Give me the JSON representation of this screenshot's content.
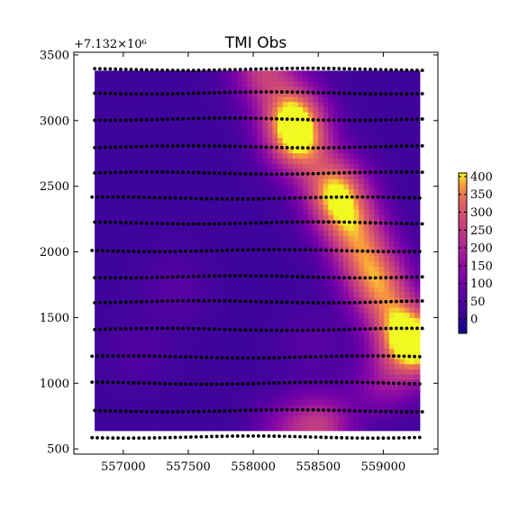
{
  "chart_data": {
    "type": "heatmap",
    "title": "TMI Obs",
    "y_offset_text": "+7.132×10⁶",
    "x_ticks": [
      557000,
      557500,
      558000,
      558500,
      559000
    ],
    "y_ticks": [
      500,
      1000,
      1500,
      2000,
      2500,
      3000,
      3500
    ],
    "xlim": [
      556620,
      559420
    ],
    "ylim": [
      460,
      3520
    ],
    "data_extent": {
      "x": [
        556780,
        559280
      ],
      "y": [
        640,
        3380
      ]
    },
    "colorbar": {
      "colormap": "plasma",
      "range": [
        -40,
        410
      ],
      "ticks": [
        0,
        50,
        100,
        150,
        200,
        250,
        300,
        350,
        400
      ]
    },
    "anomalies": [
      {
        "x": 558080,
        "y": 3390,
        "amplitude": 220
      },
      {
        "x": 558300,
        "y": 3050,
        "amplitude": 330
      },
      {
        "x": 558350,
        "y": 2820,
        "amplitude": 300
      },
      {
        "x": 558620,
        "y": 2500,
        "amplitude": 280
      },
      {
        "x": 558700,
        "y": 2300,
        "amplitude": 230
      },
      {
        "x": 558820,
        "y": 2070,
        "amplitude": 210
      },
      {
        "x": 558920,
        "y": 1830,
        "amplitude": 220
      },
      {
        "x": 559020,
        "y": 1640,
        "amplitude": 170
      },
      {
        "x": 559150,
        "y": 1400,
        "amplitude": 250
      },
      {
        "x": 559270,
        "y": 1270,
        "amplitude": 330
      },
      {
        "x": 559000,
        "y": 1000,
        "amplitude": 120
      },
      {
        "x": 558530,
        "y": 680,
        "amplitude": 200
      },
      {
        "x": 558250,
        "y": 640,
        "amplitude": 110
      },
      {
        "x": 557400,
        "y": 1720,
        "amplitude": 40
      },
      {
        "x": 557120,
        "y": 1250,
        "amplitude": 30
      },
      {
        "x": 558450,
        "y": 1300,
        "amplitude": 40
      }
    ],
    "background_level": 20,
    "survey_lines": [
      {
        "y": 3390,
        "x_start": 556780,
        "x_end": 559300,
        "spacing": 40
      },
      {
        "y": 3210,
        "x_start": 556780,
        "x_end": 559300,
        "spacing": 40
      },
      {
        "y": 3010,
        "x_start": 556780,
        "x_end": 559300,
        "spacing": 40
      },
      {
        "y": 2800,
        "x_start": 556780,
        "x_end": 559300,
        "spacing": 40
      },
      {
        "y": 2600,
        "x_start": 556780,
        "x_end": 559300,
        "spacing": 40
      },
      {
        "y": 2410,
        "x_start": 556760,
        "x_end": 559300,
        "spacing": 40
      },
      {
        "y": 2220,
        "x_start": 556780,
        "x_end": 559300,
        "spacing": 40
      },
      {
        "y": 2010,
        "x_start": 556760,
        "x_end": 559300,
        "spacing": 40
      },
      {
        "y": 1810,
        "x_start": 556780,
        "x_end": 559300,
        "spacing": 40
      },
      {
        "y": 1620,
        "x_start": 556780,
        "x_end": 559300,
        "spacing": 40
      },
      {
        "y": 1410,
        "x_start": 556780,
        "x_end": 559300,
        "spacing": 40
      },
      {
        "y": 1200,
        "x_start": 556760,
        "x_end": 559300,
        "spacing": 40
      },
      {
        "y": 1000,
        "x_start": 556760,
        "x_end": 559300,
        "spacing": 40
      },
      {
        "y": 790,
        "x_start": 556780,
        "x_end": 559300,
        "spacing": 40
      },
      {
        "y": 590,
        "x_start": 556760,
        "x_end": 559300,
        "spacing": 40
      }
    ]
  }
}
